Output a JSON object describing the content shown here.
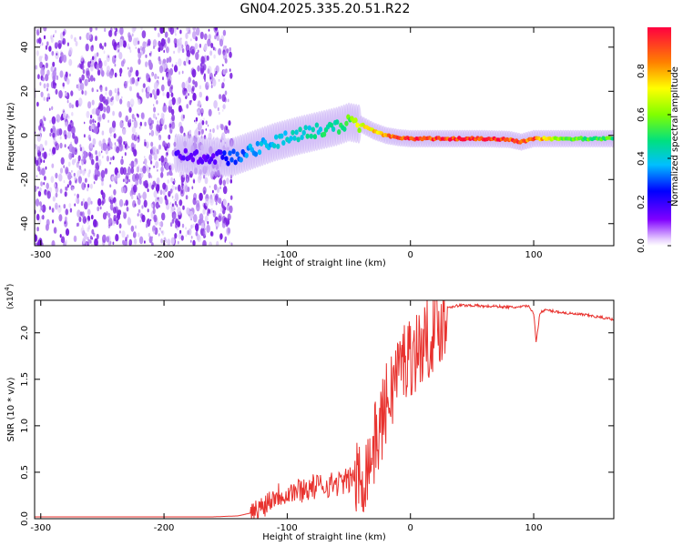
{
  "page_title": "GN04.2025.335.20.51.R22",
  "colors": {
    "snr_line": "#e8322e",
    "background": "#ffffff",
    "axis": "#000000",
    "noise_field": "#7a1fe0"
  },
  "chart_data": [
    {
      "id": "spectrogram",
      "type": "heatmap",
      "title": "GN04.2025.335.20.51.R22",
      "xlabel": "Height of straight line (km)",
      "ylabel": "Frequency (Hz)",
      "xlim": [
        -305,
        165
      ],
      "ylim": [
        -50,
        49
      ],
      "x_ticks": [
        -300,
        -200,
        -100,
        0,
        100
      ],
      "x_tick_labels": [
        "-300",
        "-200",
        "-100",
        "0",
        "100"
      ],
      "y_ticks": [
        -40,
        -20,
        0,
        20,
        40
      ],
      "y_tick_labels": [
        "-40",
        "-20",
        "0",
        "20",
        "40"
      ],
      "noise_region_km": [
        -305,
        -145
      ],
      "ridge": [
        {
          "x": -190,
          "y": -8,
          "amp": 0.18
        },
        {
          "x": -175,
          "y": -9,
          "amp": 0.15
        },
        {
          "x": -160,
          "y": -10,
          "amp": 0.16
        },
        {
          "x": -145,
          "y": -10,
          "amp": 0.3
        },
        {
          "x": -130,
          "y": -7,
          "amp": 0.35
        },
        {
          "x": -110,
          "y": -3,
          "amp": 0.38
        },
        {
          "x": -90,
          "y": 0,
          "amp": 0.42
        },
        {
          "x": -75,
          "y": 2,
          "amp": 0.45
        },
        {
          "x": -60,
          "y": 4,
          "amp": 0.5
        },
        {
          "x": -50,
          "y": 6,
          "amp": 0.55
        },
        {
          "x": -40,
          "y": 5,
          "amp": 0.7
        },
        {
          "x": -30,
          "y": 2,
          "amp": 0.8
        },
        {
          "x": -20,
          "y": 0,
          "amp": 0.85
        },
        {
          "x": -10,
          "y": -1,
          "amp": 0.9
        },
        {
          "x": 0,
          "y": -1.5,
          "amp": 0.95
        },
        {
          "x": 20,
          "y": -1.5,
          "amp": 0.96
        },
        {
          "x": 40,
          "y": -1.5,
          "amp": 0.98
        },
        {
          "x": 60,
          "y": -1.5,
          "amp": 0.98
        },
        {
          "x": 80,
          "y": -1.8,
          "amp": 0.95
        },
        {
          "x": 90,
          "y": -3,
          "amp": 0.9
        },
        {
          "x": 100,
          "y": -1.5,
          "amp": 0.96
        },
        {
          "x": 120,
          "y": -1.5,
          "amp": 0.6
        },
        {
          "x": 140,
          "y": -1.5,
          "amp": 0.55
        },
        {
          "x": 165,
          "y": -1.5,
          "amp": 0.55
        }
      ],
      "colorbar": {
        "label": "Normalized spectral amplitude",
        "range": [
          0,
          1
        ],
        "ticks": [
          0.0,
          0.2,
          0.4,
          0.6,
          0.8
        ],
        "tick_labels": [
          "0.0",
          "0.2",
          "0.4",
          "0.6",
          "0.8"
        ]
      }
    },
    {
      "id": "snr",
      "type": "line",
      "xlabel": "Height of straight line (km)",
      "ylabel": "SNR (10 * v/v)",
      "y_multiplier_base": "(x10",
      "y_multiplier_exp": "4",
      "y_multiplier_close": ")",
      "xlim": [
        -305,
        165
      ],
      "ylim": [
        0,
        2.35
      ],
      "x_ticks": [
        -300,
        -200,
        -100,
        0,
        100
      ],
      "x_tick_labels": [
        "-300",
        "-200",
        "-100",
        "0",
        "100"
      ],
      "y_ticks": [
        0.0,
        0.5,
        1.0,
        1.5,
        2.0
      ],
      "y_tick_labels": [
        "0.0",
        "0.5",
        "1.0",
        "1.5",
        "2.0"
      ],
      "series": [
        {
          "name": "SNR",
          "x": [
            -305,
            -280,
            -250,
            -220,
            -190,
            -160,
            -140,
            -130,
            -120,
            -110,
            -100,
            -90,
            -80,
            -70,
            -60,
            -50,
            -45,
            -40,
            -35,
            -30,
            -25,
            -20,
            -15,
            -10,
            -5,
            0,
            5,
            10,
            15,
            20,
            25,
            30,
            40,
            50,
            60,
            70,
            80,
            90,
            95,
            100,
            102,
            105,
            110,
            120,
            130,
            140,
            150,
            165
          ],
          "y": [
            0.02,
            0.02,
            0.02,
            0.02,
            0.02,
            0.02,
            0.03,
            0.06,
            0.18,
            0.3,
            0.32,
            0.35,
            0.38,
            0.4,
            0.42,
            0.45,
            0.52,
            0.58,
            0.7,
            0.9,
            1.1,
            1.35,
            1.55,
            1.75,
            1.85,
            1.9,
            1.95,
            2.0,
            2.1,
            2.2,
            2.25,
            2.28,
            2.3,
            2.3,
            2.29,
            2.29,
            2.28,
            2.28,
            2.3,
            2.22,
            1.9,
            2.22,
            2.25,
            2.23,
            2.21,
            2.2,
            2.18,
            2.15
          ]
        }
      ]
    }
  ]
}
